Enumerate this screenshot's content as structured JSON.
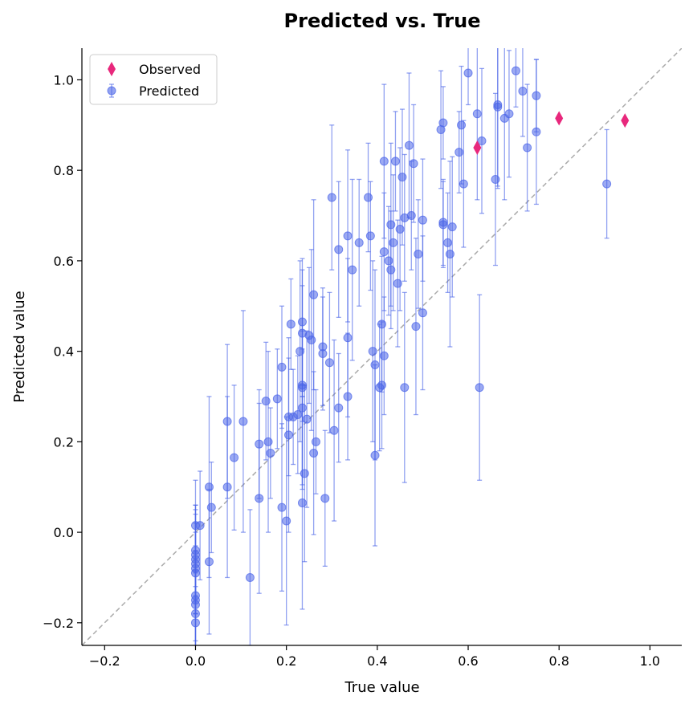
{
  "chart_data": {
    "type": "scatter",
    "title": "Predicted vs. True",
    "xlabel": "True value",
    "ylabel": "Predicted value",
    "xlim": [
      -0.25,
      1.07
    ],
    "ylim": [
      -0.25,
      1.07
    ],
    "xticks": [
      -0.2,
      0.0,
      0.2,
      0.4,
      0.6,
      0.8,
      1.0
    ],
    "yticks": [
      -0.2,
      0.0,
      0.2,
      0.4,
      0.6,
      0.8,
      1.0
    ],
    "xtick_labels": [
      "−0.2",
      "0.0",
      "0.2",
      "0.4",
      "0.6",
      "0.8",
      "1.0"
    ],
    "ytick_labels": [
      "−0.2",
      "0.0",
      "0.2",
      "0.4",
      "0.6",
      "0.8",
      "1.0"
    ],
    "reference_line": "y = x",
    "grid": false,
    "legend_position": "top-left",
    "colors": {
      "predicted": "#4a64e8",
      "observed": "#e8287c",
      "reference": "#aaaaaa"
    },
    "series": [
      {
        "name": "Predicted",
        "marker": "circle",
        "points": [
          [
            0.0,
            -0.05,
            0.1
          ],
          [
            0.0,
            -0.06,
            0.12
          ],
          [
            0.0,
            -0.08,
            0.1
          ],
          [
            0.0,
            -0.09,
            0.09
          ],
          [
            0.0,
            -0.07,
            0.11
          ],
          [
            0.0,
            -0.14,
            0.1
          ],
          [
            0.0,
            -0.15,
            0.12
          ],
          [
            0.0,
            -0.16,
            0.1
          ],
          [
            0.0,
            -0.18,
            0.09
          ],
          [
            0.0,
            -0.2,
            0.08
          ],
          [
            0.0,
            -0.04,
            0.1
          ],
          [
            0.01,
            0.015,
            0.12
          ],
          [
            0.0,
            0.015,
            0.1
          ],
          [
            0.03,
            0.1,
            0.2
          ],
          [
            0.03,
            -0.065,
            0.16
          ],
          [
            0.035,
            0.055,
            0.1
          ],
          [
            0.07,
            0.1,
            0.2
          ],
          [
            0.07,
            0.245,
            0.17
          ],
          [
            0.085,
            0.165,
            0.16
          ],
          [
            0.105,
            0.245,
            0.245
          ],
          [
            0.12,
            -0.1,
            0.15
          ],
          [
            0.14,
            0.195,
            0.12
          ],
          [
            0.14,
            0.075,
            0.21
          ],
          [
            0.155,
            0.29,
            0.13
          ],
          [
            0.16,
            0.2,
            0.2
          ],
          [
            0.165,
            0.175,
            0.1
          ],
          [
            0.18,
            0.295,
            0.11
          ],
          [
            0.19,
            0.055,
            0.185
          ],
          [
            0.19,
            0.365,
            0.135
          ],
          [
            0.2,
            0.025,
            0.23
          ],
          [
            0.205,
            0.255,
            0.13
          ],
          [
            0.205,
            0.215,
            0.215
          ],
          [
            0.21,
            0.46,
            0.1
          ],
          [
            0.215,
            0.255,
            0.105
          ],
          [
            0.225,
            0.26,
            0.13
          ],
          [
            0.23,
            0.4,
            0.2
          ],
          [
            0.235,
            0.465,
            0.14
          ],
          [
            0.235,
            0.44,
            0.14
          ],
          [
            0.235,
            0.325,
            0.08
          ],
          [
            0.235,
            0.275,
            0.17
          ],
          [
            0.235,
            0.32,
            0.225
          ],
          [
            0.235,
            0.065,
            0.235
          ],
          [
            0.24,
            0.13,
            0.195
          ],
          [
            0.245,
            0.25,
            0.195
          ],
          [
            0.25,
            0.435,
            0.15
          ],
          [
            0.255,
            0.425,
            0.2
          ],
          [
            0.26,
            0.525,
            0.21
          ],
          [
            0.26,
            0.175,
            0.18
          ],
          [
            0.265,
            0.2,
            0.115
          ],
          [
            0.28,
            0.41,
            0.13
          ],
          [
            0.28,
            0.395,
            0.125
          ],
          [
            0.285,
            0.075,
            0.15
          ],
          [
            0.295,
            0.375,
            0.155
          ],
          [
            0.3,
            0.74,
            0.16
          ],
          [
            0.305,
            0.225,
            0.2
          ],
          [
            0.315,
            0.625,
            0.15
          ],
          [
            0.315,
            0.275,
            0.12
          ],
          [
            0.335,
            0.43,
            0.175
          ],
          [
            0.335,
            0.655,
            0.19
          ],
          [
            0.335,
            0.3,
            0.14
          ],
          [
            0.345,
            0.58,
            0.2
          ],
          [
            0.36,
            0.64,
            0.14
          ],
          [
            0.38,
            0.74,
            0.12
          ],
          [
            0.385,
            0.655,
            0.12
          ],
          [
            0.39,
            0.4,
            0.2
          ],
          [
            0.395,
            0.37,
            0.21
          ],
          [
            0.395,
            0.17,
            0.2
          ],
          [
            0.405,
            0.32,
            0.14
          ],
          [
            0.41,
            0.325,
            0.14
          ],
          [
            0.41,
            0.46,
            0.15
          ],
          [
            0.415,
            0.39,
            0.13
          ],
          [
            0.415,
            0.62,
            0.13
          ],
          [
            0.415,
            0.82,
            0.17
          ],
          [
            0.425,
            0.6,
            0.12
          ],
          [
            0.43,
            0.68,
            0.18
          ],
          [
            0.43,
            0.58,
            0.13
          ],
          [
            0.435,
            0.64,
            0.15
          ],
          [
            0.44,
            0.82,
            0.11
          ],
          [
            0.445,
            0.55,
            0.14
          ],
          [
            0.45,
            0.67,
            0.18
          ],
          [
            0.455,
            0.785,
            0.15
          ],
          [
            0.46,
            0.695,
            0.14
          ],
          [
            0.46,
            0.32,
            0.21
          ],
          [
            0.47,
            0.855,
            0.16
          ],
          [
            0.475,
            0.7,
            0.12
          ],
          [
            0.48,
            0.815,
            0.13
          ],
          [
            0.485,
            0.455,
            0.195
          ],
          [
            0.49,
            0.615,
            0.12
          ],
          [
            0.5,
            0.69,
            0.135
          ],
          [
            0.5,
            0.485,
            0.17
          ],
          [
            0.54,
            0.89,
            0.13
          ],
          [
            0.545,
            0.905,
            0.08
          ],
          [
            0.545,
            0.685,
            0.095
          ],
          [
            0.545,
            0.68,
            0.095
          ],
          [
            0.555,
            0.64,
            0.11
          ],
          [
            0.56,
            0.615,
            0.205
          ],
          [
            0.565,
            0.675,
            0.155
          ],
          [
            0.58,
            0.84,
            0.09
          ],
          [
            0.585,
            0.9,
            0.13
          ],
          [
            0.59,
            0.77,
            0.14
          ],
          [
            0.6,
            1.015,
            0.07
          ],
          [
            0.62,
            0.925,
            0.19
          ],
          [
            0.625,
            0.32,
            0.205
          ],
          [
            0.63,
            0.865,
            0.16
          ],
          [
            0.66,
            0.78,
            0.19
          ],
          [
            0.665,
            0.945,
            0.18
          ],
          [
            0.665,
            0.94,
            0.18
          ],
          [
            0.68,
            0.915,
            0.18
          ],
          [
            0.69,
            0.925,
            0.14
          ],
          [
            0.705,
            1.02,
            0.08
          ],
          [
            0.72,
            0.975,
            0.1
          ],
          [
            0.73,
            0.85,
            0.14
          ],
          [
            0.75,
            0.965,
            0.08
          ],
          [
            0.75,
            0.885,
            0.16
          ],
          [
            0.905,
            0.77,
            0.12
          ]
        ]
      },
      {
        "name": "Observed",
        "marker": "diamond",
        "points": [
          [
            0.62,
            0.85
          ],
          [
            0.8,
            0.915
          ],
          [
            0.945,
            0.91
          ]
        ]
      }
    ]
  }
}
